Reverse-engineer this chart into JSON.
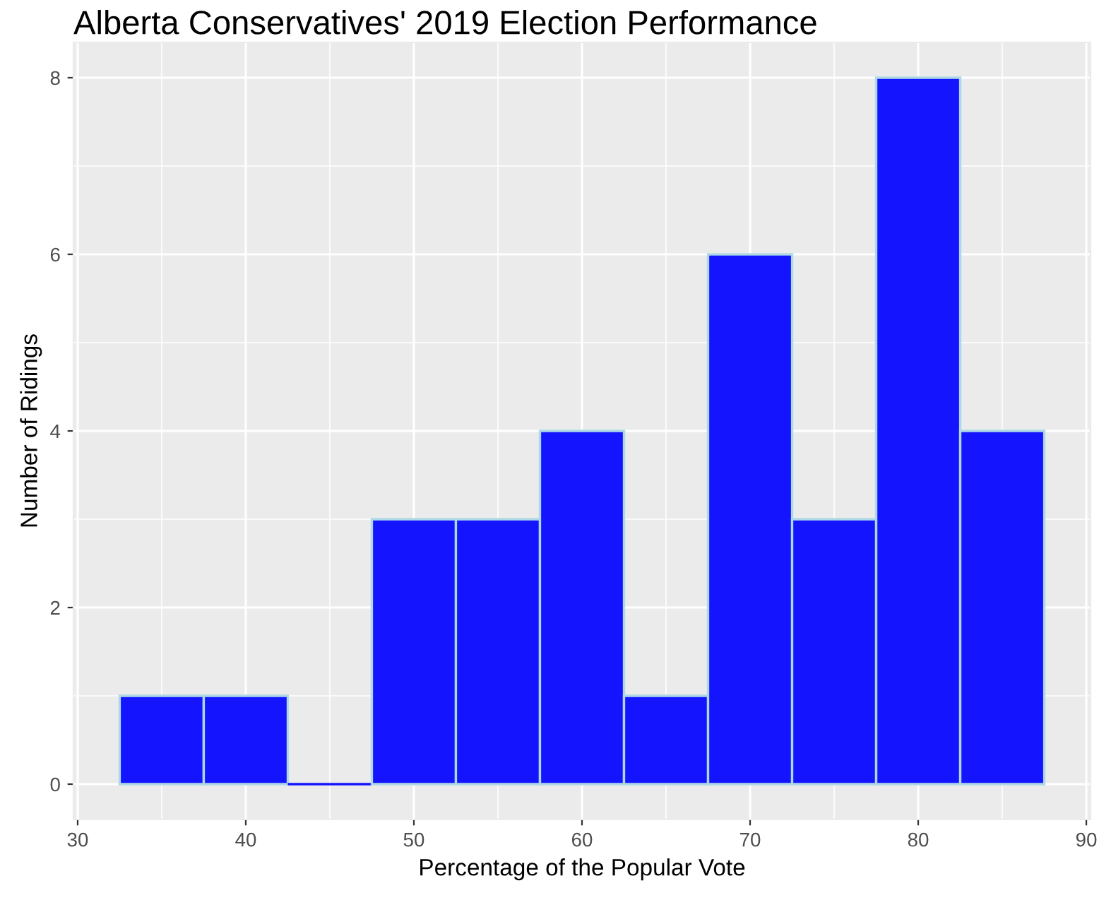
{
  "chart_data": {
    "type": "histogram",
    "title": "Alberta Conservatives' 2019 Election Performance",
    "xlabel": "Percentage of the Popular Vote",
    "ylabel": "Number of Ridings",
    "bins": [
      32.5,
      37.5,
      42.5,
      47.5,
      52.5,
      57.5,
      62.5,
      67.5,
      72.5,
      77.5,
      82.5,
      87.5
    ],
    "values": [
      1,
      1,
      0,
      3,
      3,
      4,
      1,
      6,
      3,
      8,
      4
    ],
    "color": "#1414ff",
    "xlim": [
      29.75,
      90.25
    ],
    "xticks": [
      30,
      40,
      50,
      60,
      70,
      80,
      90
    ],
    "ylim": [
      -0.4,
      8.4
    ],
    "yticks": [
      0,
      2,
      4,
      6,
      8
    ],
    "grid": true
  }
}
